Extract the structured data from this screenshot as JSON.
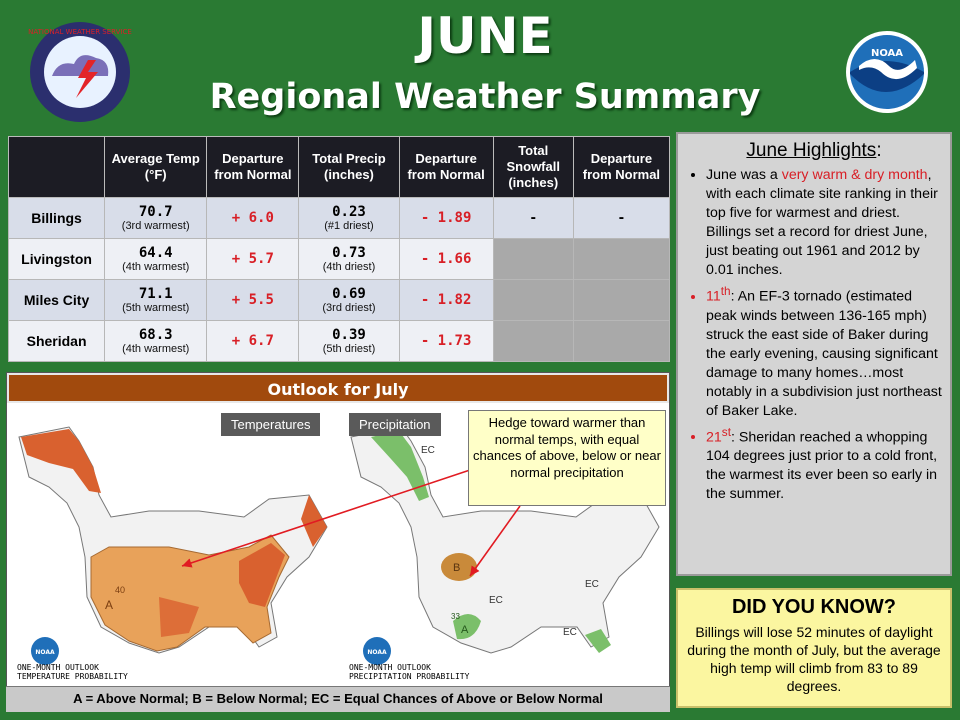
{
  "title": "JUNE",
  "subtitle": "Regional Weather Summary",
  "logos": {
    "nws": "NATIONAL WEATHER SERVICE",
    "noaa": "NOAA"
  },
  "table": {
    "headers": [
      "",
      "Average Temp (°F)",
      "Departure from Normal",
      "Total Precip (inches)",
      "Departure from Normal",
      "Total Snowfall (inches)",
      "Departure from Normal"
    ],
    "rows": [
      {
        "site": "Billings",
        "temp": "70.7",
        "temp_rank": "(3rd warmest)",
        "temp_dep": "+ 6.0",
        "precip": "0.23",
        "precip_rank": "(#1 driest)",
        "precip_dep": "- 1.89",
        "snow": "-",
        "snow_dep": "-"
      },
      {
        "site": "Livingston",
        "temp": "64.4",
        "temp_rank": "(4th warmest)",
        "temp_dep": "+ 5.7",
        "precip": "0.73",
        "precip_rank": "(4th driest)",
        "precip_dep": "- 1.66",
        "snow": "",
        "snow_dep": ""
      },
      {
        "site": "Miles City",
        "temp": "71.1",
        "temp_rank": "(5th warmest)",
        "temp_dep": "+ 5.5",
        "precip": "0.69",
        "precip_rank": "(3rd driest)",
        "precip_dep": "- 1.82",
        "snow": "",
        "snow_dep": ""
      },
      {
        "site": "Sheridan",
        "temp": "68.3",
        "temp_rank": "(4th warmest)",
        "temp_dep": "+ 6.7",
        "precip": "0.39",
        "precip_rank": "(5th driest)",
        "precip_dep": "- 1.73",
        "snow": "",
        "snow_dep": ""
      }
    ]
  },
  "highlights": {
    "title": "June Highlights",
    "colon": ":",
    "b1_pre": "June was a ",
    "b1_red": "very warm & dry month",
    "b1_post": ", with each climate site ranking in their top five for warmest and driest. Billings set a record for driest June, just beating out 1961 and 2012 by 0.01 inches.",
    "b2_date": "11",
    "b2_sup": "th",
    "b2_text": ": An EF-3 tornado (estimated  peak winds between 136-165 mph) struck the east side of Baker during the early evening, causing significant damage to many homes…most notably in a subdivision just northeast of Baker Lake.",
    "b3_date": "21",
    "b3_sup": "st",
    "b3_text": ": Sheridan reached a whopping 104 degrees  just prior to a cold front, the warmest its ever been so early in the summer."
  },
  "did_you_know": {
    "title": "DID YOU KNOW?",
    "text": "Billings will lose 52 minutes  of daylight during the month  of July, but the average high temp  will climb from 83 to 89 degrees."
  },
  "outlook": {
    "title": "Outlook for July",
    "temp_tab": "Temperatures",
    "precip_tab": "Precipitation",
    "callout": "Hedge toward warmer than normal temps, with equal chances of above, below or near normal precipitation",
    "temp_foot1": "ONE-MONTH OUTLOOK",
    "temp_foot2": "TEMPERATURE PROBABILITY",
    "precip_foot1": "ONE-MONTH OUTLOOK",
    "precip_foot2": "PRECIPITATION PROBABILITY",
    "legend": "A = Above Normal;  B = Below Normal;  EC = Equal Chances of Above or Below Normal",
    "map_labels": {
      "ec": "EC",
      "a": "A",
      "b": "B",
      "n40": "40",
      "n33": "33"
    },
    "colors": {
      "above_temp": "#e8a25a",
      "above_temp_strong": "#d9612f",
      "above_precip": "#7bbf6a",
      "below_precip": "#c98a3a"
    }
  }
}
